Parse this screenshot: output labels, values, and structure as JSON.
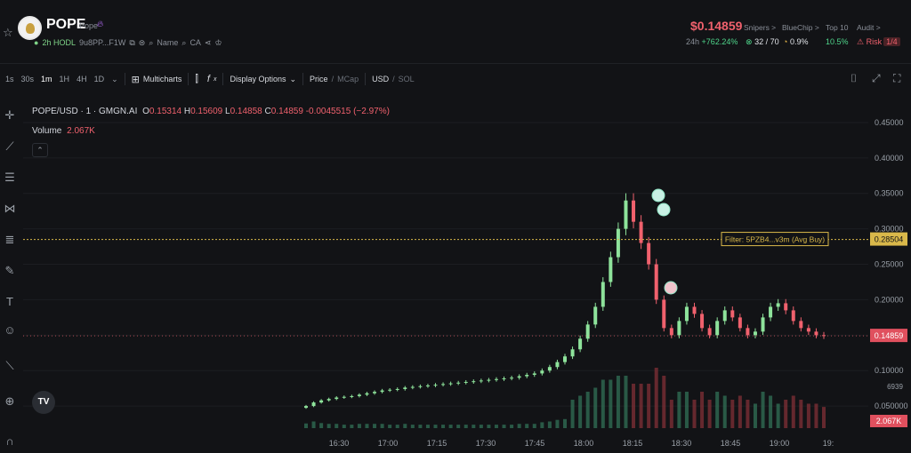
{
  "token": {
    "symbol": "POPE",
    "subname": "Pope",
    "hodl": "2h HODL",
    "address": "9u8PP...F1W",
    "name_label": "Name",
    "ca_label": "CA"
  },
  "stats": {
    "price": "$0.14859",
    "h24_label": "24h",
    "h24_change": "+762.24%",
    "snipers_label": "Snipers >",
    "snipers_value": "32 / 70",
    "bluechip_label": "BlueChip >",
    "bluechip_value": "0.9%",
    "top10_label": "Top 10",
    "top10_value": "10.5%",
    "audit_label": "Audit >",
    "risk_label": "Risk",
    "risk_value": "1/4"
  },
  "toolbar": {
    "timeframes": [
      "1s",
      "30s",
      "1m",
      "1H",
      "4H",
      "1D"
    ],
    "active_timeframe": "1m",
    "multicharts": "Multicharts",
    "display_options": "Display Options",
    "price": "Price",
    "mcap": "MCap",
    "usd": "USD",
    "sol": "SOL"
  },
  "legend": {
    "pair": "POPE/USD · 1 · GMGN.AI",
    "o_label": "O",
    "o": "0.15314",
    "h_label": "H",
    "h": "0.15609",
    "l_label": "L",
    "l": "0.14858",
    "c_label": "C",
    "c": "0.14859",
    "change": "-0.0045515 (−2.97%)",
    "volume_label": "Volume",
    "volume": "2.067K"
  },
  "chart_data": {
    "type": "candlestick",
    "title": "POPE/USD · 1 · GMGN.AI",
    "x_ticks": [
      "16:30",
      "17:00",
      "17:15",
      "17:30",
      "17:45",
      "18:00",
      "18:15",
      "18:30",
      "18:45",
      "19:00",
      "19:"
    ],
    "y_ticks": [
      "0.45000",
      "0.40000",
      "0.35000",
      "0.30000",
      "0.25000",
      "0.20000",
      "0.15000",
      "0.10000",
      "0.050000"
    ],
    "ylim": [
      0.0,
      0.47
    ],
    "current_price_label": "0.14859",
    "avg_buy_price": 0.28504,
    "avg_buy_label": "0.28504",
    "filter_label": "Filter: 5PZB4...v3m (Avg Buy)",
    "volume_label": "2.067K",
    "volume_axis_label": "6939",
    "close_series": [
      0.05,
      0.055,
      0.058,
      0.06,
      0.062,
      0.063,
      0.064,
      0.066,
      0.068,
      0.07,
      0.072,
      0.073,
      0.074,
      0.076,
      0.077,
      0.078,
      0.079,
      0.08,
      0.081,
      0.082,
      0.083,
      0.084,
      0.085,
      0.086,
      0.087,
      0.088,
      0.089,
      0.09,
      0.092,
      0.094,
      0.096,
      0.1,
      0.105,
      0.112,
      0.12,
      0.13,
      0.145,
      0.165,
      0.19,
      0.225,
      0.26,
      0.3,
      0.34,
      0.31,
      0.28,
      0.25,
      0.2,
      0.16,
      0.15,
      0.17,
      0.19,
      0.18,
      0.16,
      0.15,
      0.17,
      0.185,
      0.175,
      0.16,
      0.15,
      0.155,
      0.175,
      0.19,
      0.195,
      0.185,
      0.17,
      0.16,
      0.155,
      0.15,
      0.149
    ]
  }
}
